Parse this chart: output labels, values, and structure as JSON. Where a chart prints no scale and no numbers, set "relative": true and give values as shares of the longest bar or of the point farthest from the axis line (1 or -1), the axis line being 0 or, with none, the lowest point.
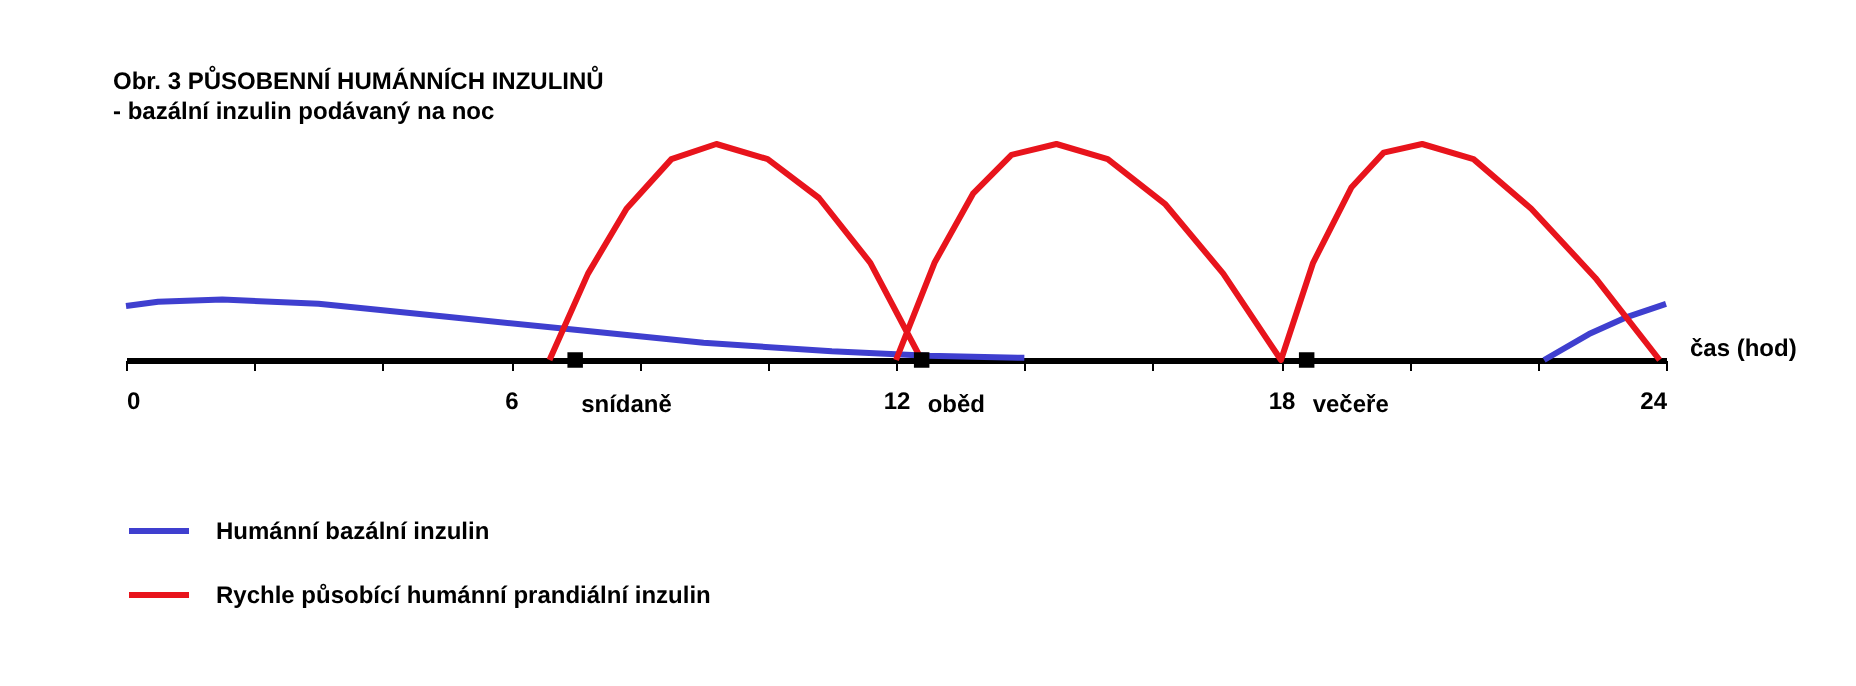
{
  "chart_data": {
    "type": "line",
    "title": "Obr. 3 PŮSOBENNÍ HUMÁNNÍCH INZULINŮ",
    "subtitle": " - bazální inzulin podávaný na noc",
    "xlabel": "čas (hod)",
    "relative": true,
    "xlim": [
      0,
      24
    ],
    "xticks": [
      0,
      {
        "value": 2,
        "label": null
      },
      {
        "value": 4,
        "label": null
      },
      6,
      {
        "value": 8,
        "label": null
      },
      {
        "value": 10,
        "label": null
      },
      12,
      {
        "value": 14,
        "label": null
      },
      {
        "value": 16,
        "label": null
      },
      18,
      {
        "value": 20,
        "label": null
      },
      {
        "value": 22,
        "label": null
      },
      24
    ],
    "legend": "bottom left",
    "grid": false,
    "line_style": "solid",
    "series": [
      {
        "name": "Humánní bazální inzulin",
        "color": "#3f3fcf",
        "x": [
          0,
          0.5,
          1.5,
          3,
          5,
          7,
          9,
          11,
          12.5,
          14,
          18,
          22.1,
          22.8,
          23.4,
          24
        ],
        "values": [
          0.25,
          0.27,
          0.28,
          0.26,
          0.2,
          0.14,
          0.08,
          0.04,
          0.02,
          0.01,
          null,
          0,
          0.12,
          0.2,
          0.26
        ]
      },
      {
        "name": "Rychle působící humánní prandiální inzulin",
        "color": "#e8141c",
        "x": [
          6.6,
          7.2,
          7.8,
          8.5,
          9.2,
          10.0,
          10.8,
          11.6,
          12.4,
          12.2,
          12.0,
          12.6,
          13.2,
          13.8,
          14.5,
          15.3,
          16.2,
          17.1,
          18.0,
          18.5,
          19.1,
          19.6,
          20.2,
          21.0,
          21.9,
          22.9,
          23.9
        ],
        "values": [
          0,
          0.4,
          0.7,
          0.93,
          1,
          0.93,
          0.75,
          0.45,
          0,
          null,
          0,
          0.45,
          0.77,
          0.95,
          1,
          0.93,
          0.72,
          0.4,
          0,
          0.45,
          0.8,
          0.96,
          1,
          0.93,
          0.7,
          0.38,
          0
        ]
      },
      {
        "type": "scatter",
        "marker": "square",
        "color": "#000000",
        "x": [
          7.0,
          12.4,
          18.4
        ],
        "values": [
          0,
          0,
          0
        ]
      }
    ],
    "annotations": [
      {
        "text": "snídaně",
        "x": 7.0,
        "y": 0
      },
      {
        "text": "oběd",
        "x": 12.4,
        "y": 0
      },
      {
        "text": "večeře",
        "x": 18.4,
        "y": 0
      }
    ]
  }
}
